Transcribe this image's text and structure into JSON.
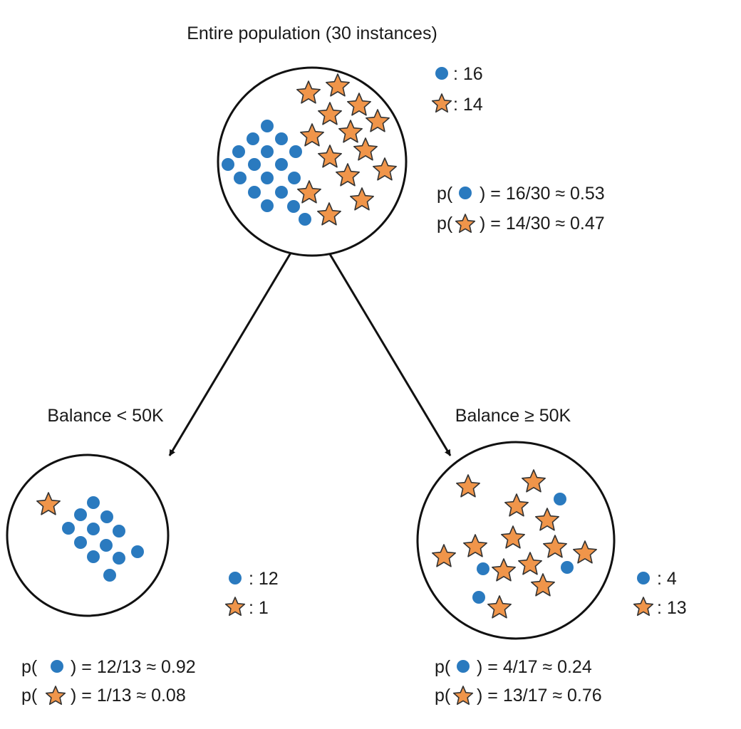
{
  "colors": {
    "dot": "#2a7abf",
    "star_fill": "#f0954a",
    "star_stroke": "#333333",
    "line": "#111111"
  },
  "icons": {
    "dot": "blue-dot-icon",
    "star": "orange-star-icon"
  },
  "nodes": [
    {
      "id": "root",
      "title": "Entire population (30 instances)",
      "legend": {
        "dot": ": 16",
        "star": ": 14"
      },
      "prob": {
        "open": "p(",
        "dot": ") = 16/30 ≈ 0.53",
        "star": ") = 14/30 ≈ 0.47"
      }
    },
    {
      "id": "left",
      "title": "Balance < 50K",
      "legend": {
        "dot": ": 12",
        "star": ": 1"
      },
      "prob": {
        "open": "p(",
        "dot": ") = 12/13 ≈ 0.92",
        "star": ") = 1/13 ≈ 0.08"
      }
    },
    {
      "id": "right",
      "title": "Balance ≥ 50K",
      "legend": {
        "dot": ": 4",
        "star": ": 13"
      },
      "prob": {
        "open": "p(",
        "dot": ") = 4/17 ≈ 0.24",
        "star": ") = 13/17 ≈ 0.76"
      }
    }
  ]
}
